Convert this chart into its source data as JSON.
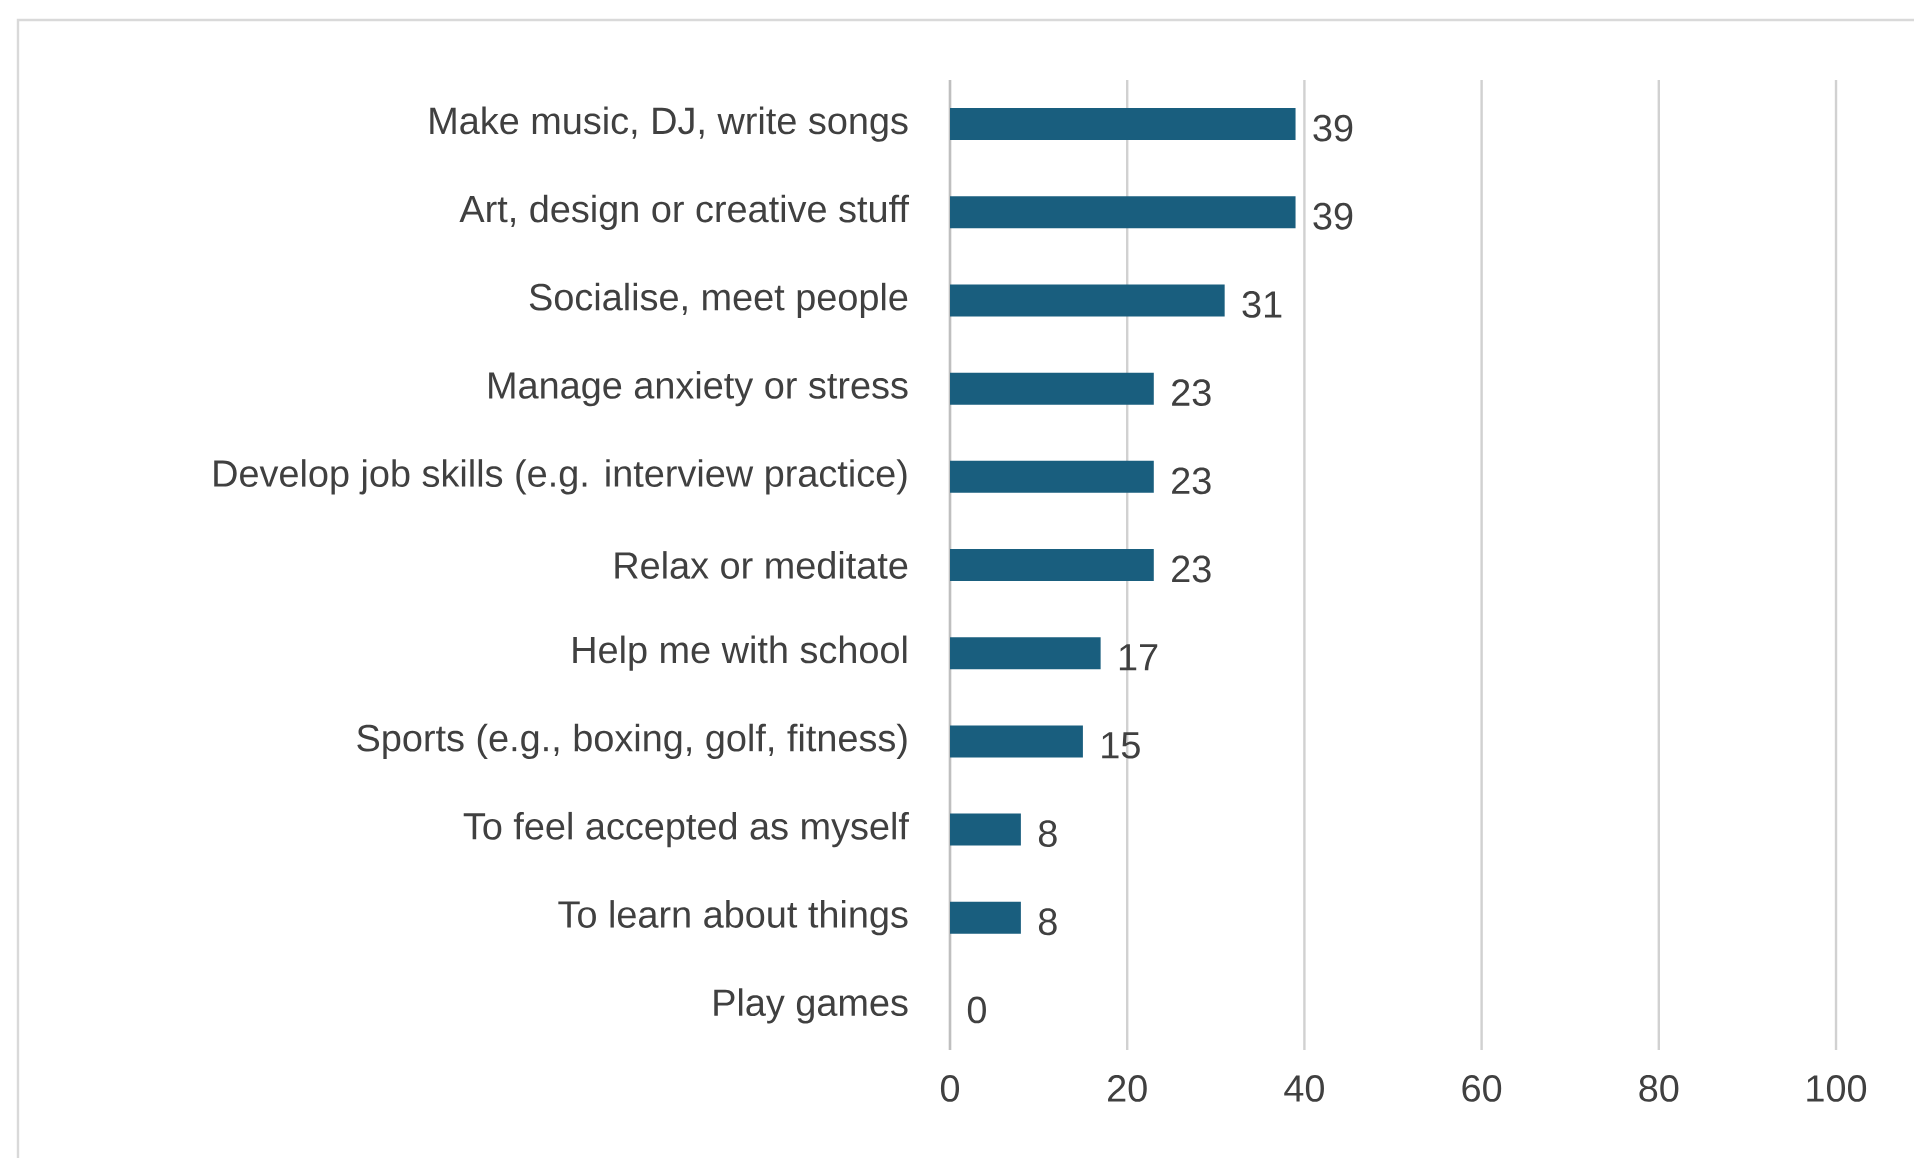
{
  "chart_data": {
    "type": "bar",
    "orientation": "horizontal",
    "categories": [
      "Make music, DJ, write songs",
      "Art, design or creative stuff",
      "Socialise, meet people",
      "Manage anxiety or stress",
      "Develop job skills (e.g. interview practice)",
      "Relax or meditate",
      "Help me with school",
      "Sports (e.g., boxing, golf, fitness)",
      "To feel accepted as myself",
      "To learn about things",
      "Play games"
    ],
    "values": [
      39,
      39,
      31,
      23,
      23,
      23,
      17,
      15,
      8,
      8,
      0
    ],
    "color": "#195e7e",
    "xlim": [
      0,
      100
    ],
    "xticks": [
      0,
      20,
      40,
      60,
      80,
      100
    ],
    "grid": "x",
    "data_labels": true
  }
}
